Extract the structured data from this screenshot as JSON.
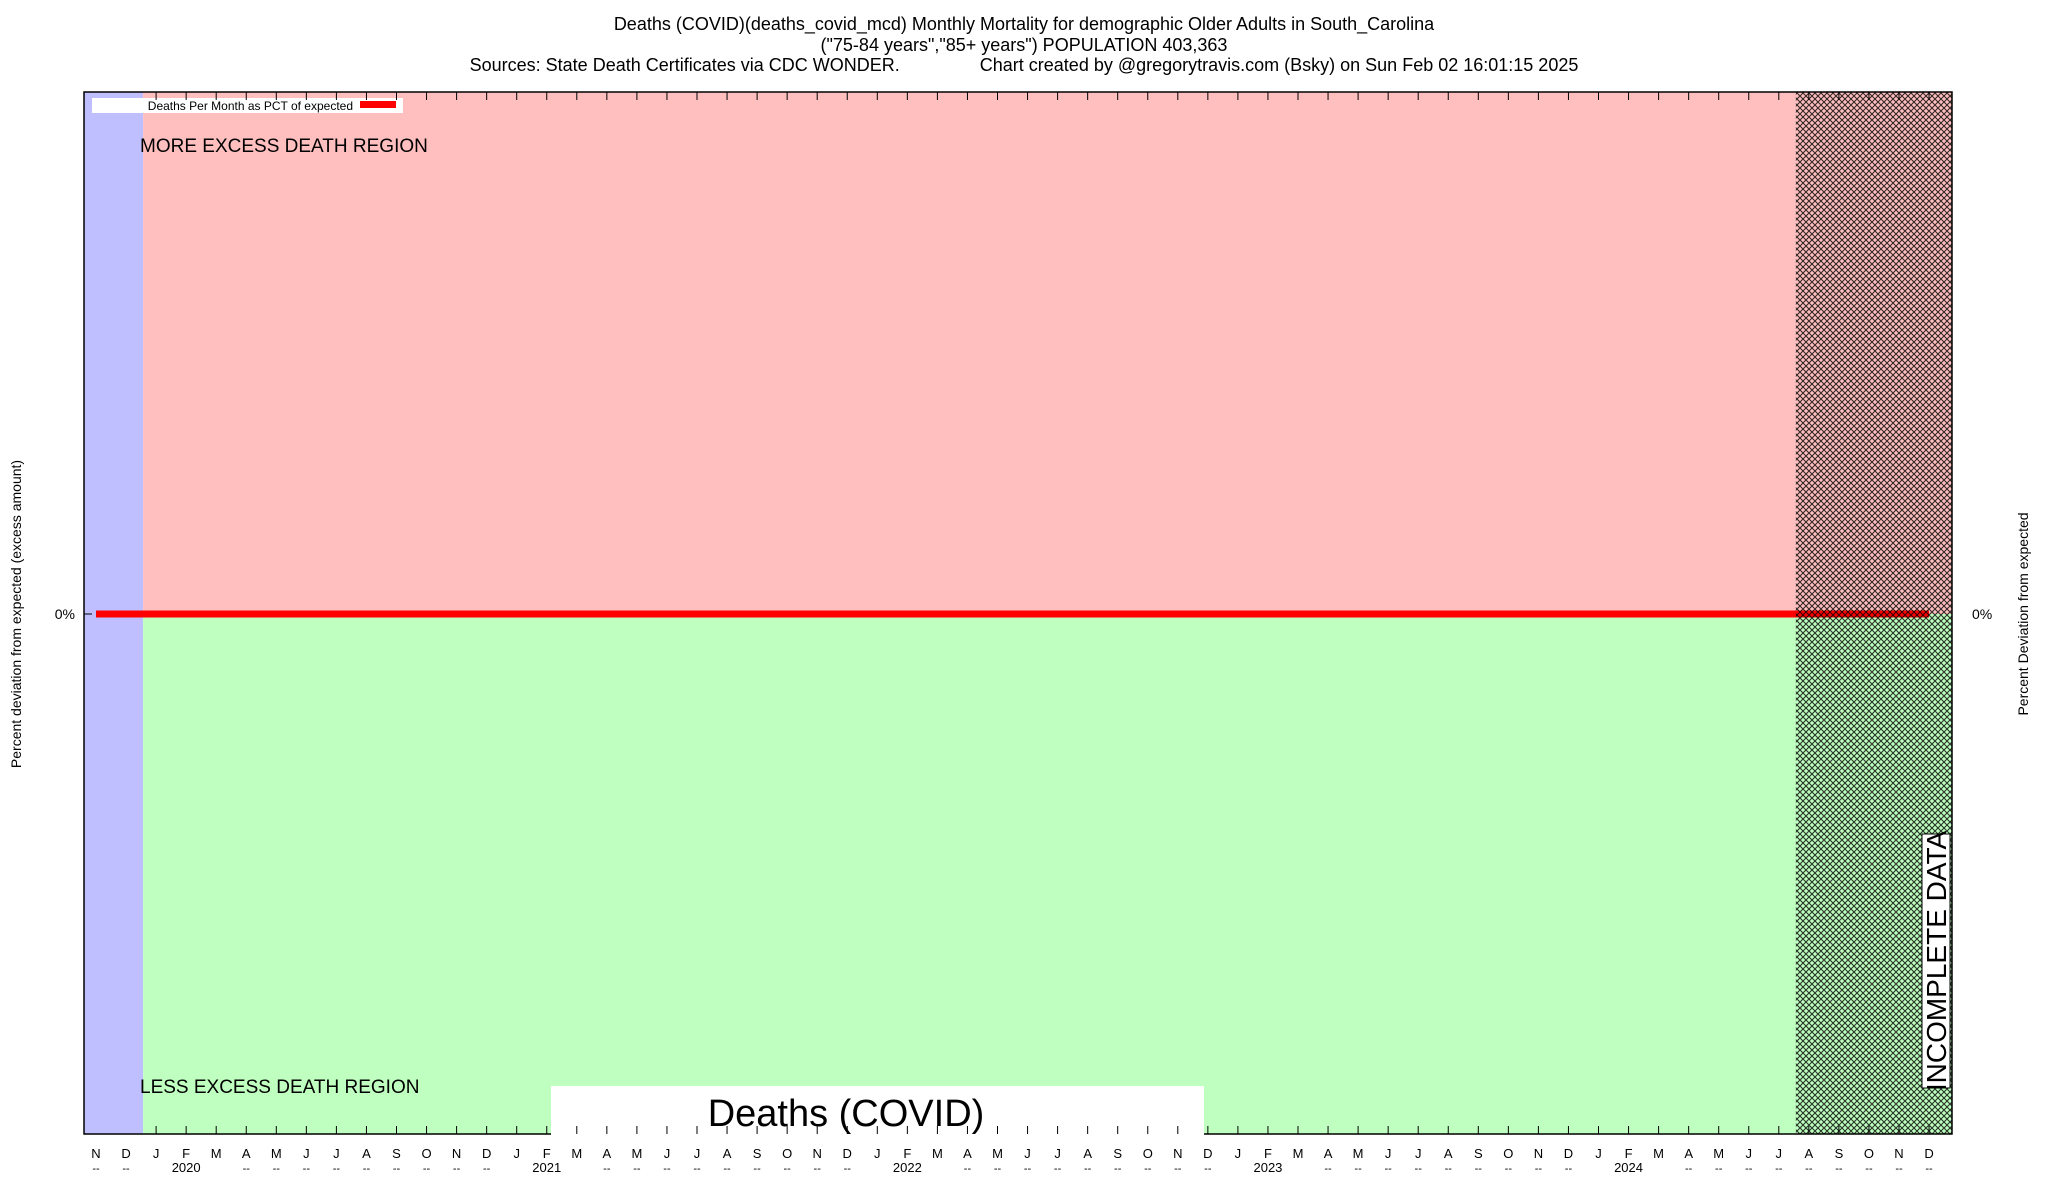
{
  "chart_data": {
    "type": "line",
    "title_lines": [
      "Deaths (COVID)(deaths_covid_mcd) Monthly Mortality for demographic Older Adults in South_Carolina",
      "(\"75-84 years\",\"85+ years\") POPULATION 403,363",
      "Sources: State Death Certificates via CDC WONDER.                Chart created by @gregorytravis.com (Bsky) on Sun Feb 02 16:01:15 2025"
    ],
    "ylabel_left": "Percent deviation from expected (excess amount)",
    "ylabel_right": "Percent Deviation from expected",
    "y_tick_left": "0%",
    "y_tick_right": "0%",
    "legend": {
      "label": "Deaths Per Month as PCT of expected",
      "position": "top-left"
    },
    "region_labels": {
      "upper": "MORE EXCESS DEATH REGION",
      "lower": "LESS EXCESS DEATH REGION",
      "incomplete": "INCOMPLETE DATA"
    },
    "watermark": "Deaths (COVID)",
    "x_month_labels": [
      "N",
      "D",
      "J",
      "F",
      "M",
      "A",
      "M",
      "J",
      "J",
      "A",
      "S",
      "O",
      "N",
      "D",
      "J",
      "F",
      "M",
      "A",
      "M",
      "J",
      "J",
      "A",
      "S",
      "O",
      "N",
      "D",
      "J",
      "F",
      "M",
      "A",
      "M",
      "J",
      "J",
      "A",
      "S",
      "O",
      "N",
      "D",
      "J",
      "F",
      "M",
      "A",
      "M",
      "J",
      "J",
      "A",
      "S",
      "O",
      "N",
      "D",
      "J",
      "F",
      "M",
      "A",
      "M",
      "J",
      "J",
      "A",
      "S",
      "O",
      "N",
      "D"
    ],
    "x_sub_labels": [
      "--",
      "--",
      "",
      "2020",
      "",
      "--",
      "--",
      "--",
      "--",
      "--",
      "--",
      "--",
      "--",
      "--",
      "",
      "2021",
      "",
      "--",
      "--",
      "--",
      "--",
      "--",
      "--",
      "--",
      "--",
      "--",
      "",
      "2022",
      "",
      "--",
      "--",
      "--",
      "--",
      "--",
      "--",
      "--",
      "--",
      "--",
      "",
      "2023",
      "",
      "--",
      "--",
      "--",
      "--",
      "--",
      "--",
      "--",
      "--",
      "--",
      "",
      "2024",
      "",
      "--",
      "--",
      "--",
      "--",
      "--",
      "--",
      "--",
      "--",
      "--"
    ],
    "series": [
      {
        "name": "Deaths Per Month as PCT of expected",
        "color": "#ff0000",
        "values": [
          0,
          0,
          0,
          0,
          0,
          0,
          0,
          0,
          0,
          0,
          0,
          0,
          0,
          0,
          0,
          0,
          0,
          0,
          0,
          0,
          0,
          0,
          0,
          0,
          0,
          0,
          0,
          0,
          0,
          0,
          0,
          0,
          0,
          0,
          0,
          0,
          0,
          0,
          0,
          0,
          0,
          0,
          0,
          0,
          0,
          0,
          0,
          0,
          0,
          0,
          0,
          0,
          0,
          0,
          0,
          0,
          0,
          0,
          0,
          0,
          0,
          0
        ]
      }
    ],
    "pre_period_months": 2,
    "incomplete_from_month_index": 57,
    "colors": {
      "excess": "#ffbfbf",
      "less": "#bfffbf",
      "pre": "#bfbfff",
      "line": "#ff0000"
    },
    "grid": false
  }
}
